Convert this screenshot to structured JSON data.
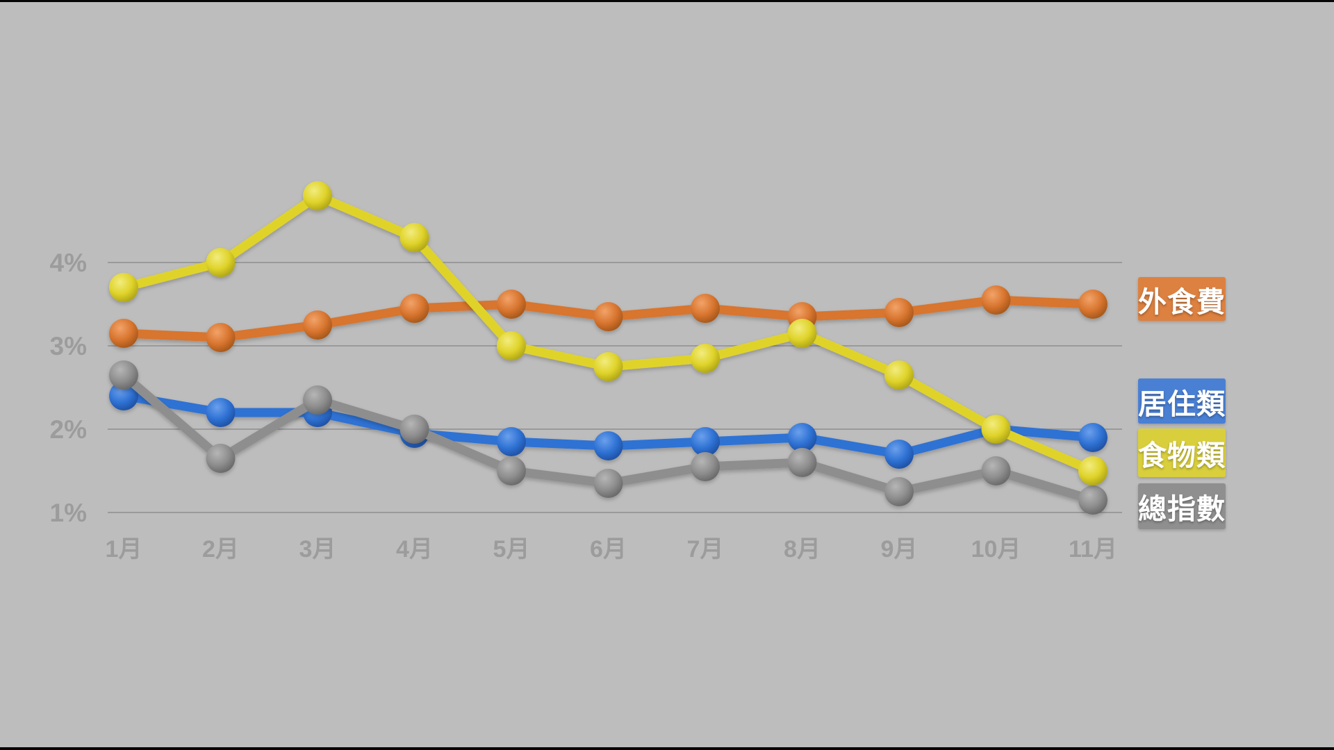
{
  "chart_data": {
    "type": "line",
    "title": "",
    "xlabel": "",
    "ylabel": "",
    "grid": "horizontal-only",
    "legend_position": "right",
    "background_color": "#bdbdbd",
    "gridline_color": "#9a9a9a",
    "tick_label_color": "#9c9c9c",
    "categories": [
      "1月",
      "2月",
      "3月",
      "4月",
      "5月",
      "6月",
      "7月",
      "8月",
      "9月",
      "10月",
      "11月"
    ],
    "y_ticks": [
      {
        "label": "4%",
        "value": 4
      },
      {
        "label": "3%",
        "value": 3
      },
      {
        "label": "2%",
        "value": 2
      },
      {
        "label": "1%",
        "value": 1
      }
    ],
    "ylim": [
      0.8,
      5.2
    ],
    "unit": "%",
    "series": [
      {
        "id": "dining-out",
        "name": "外食費",
        "color": "#dd8140",
        "line_color": "#d8752f",
        "ball_highlight": "#f2a369",
        "ball_shade": "#9e5318",
        "values": [
          3.15,
          3.1,
          3.25,
          3.45,
          3.5,
          3.35,
          3.45,
          3.35,
          3.4,
          3.55,
          3.5
        ]
      },
      {
        "id": "housing",
        "name": "居住類",
        "color": "#4a80d4",
        "line_color": "#2f72d4",
        "ball_highlight": "#6ba0ec",
        "ball_shade": "#1c4c9c",
        "values": [
          2.4,
          2.2,
          2.2,
          1.95,
          1.85,
          1.8,
          1.85,
          1.9,
          1.7,
          2.0,
          1.9
        ]
      },
      {
        "id": "food",
        "name": "食物類",
        "color": "#d9cf3c",
        "line_color": "#dfd32a",
        "ball_highlight": "#f2ec7e",
        "ball_shade": "#a89f14",
        "values": [
          3.7,
          4.0,
          4.8,
          4.3,
          3.0,
          2.75,
          2.85,
          3.15,
          2.65,
          2.0,
          1.5
        ]
      },
      {
        "id": "overall-index",
        "name": "總指數",
        "color": "#8f8f8f",
        "line_color": "#8e8e8e",
        "ball_highlight": "#b6b6b6",
        "ball_shade": "#636363",
        "values": [
          2.65,
          1.65,
          2.35,
          2.0,
          1.5,
          1.35,
          1.55,
          1.6,
          1.25,
          1.5,
          1.15
        ]
      }
    ]
  }
}
